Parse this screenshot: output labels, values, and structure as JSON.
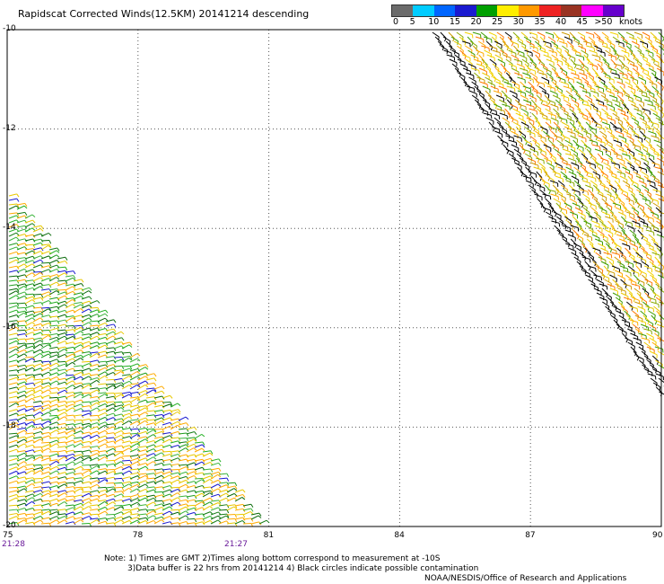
{
  "title": "Rapidscat Corrected Winds(12.5KM) 20141214 descending",
  "color_scale": {
    "unit_label": "knots",
    "labels": [
      "0",
      "5",
      "10",
      "15",
      "20",
      "25",
      "30",
      "35",
      "40",
      "45",
      ">50"
    ],
    "colors": [
      "#6b6b6b",
      "#00ccff",
      "#0066ff",
      "#1a1ad0",
      "#00a000",
      "#ffee00",
      "#ff9900",
      "#ee2222",
      "#993322",
      "#ff00ff",
      "#6600cc"
    ]
  },
  "axes": {
    "lon_ticks": [
      "75",
      "78",
      "81",
      "84",
      "87",
      "90"
    ],
    "lat_ticks": [
      "-10",
      "-12",
      "-14",
      "-16",
      "-18",
      "-20"
    ]
  },
  "time_labels": {
    "left": "21:28",
    "right": "21:27"
  },
  "notes": {
    "line1": "Note: 1) Times are GMT 2)Times along bottom correspond to measurement at -10S",
    "line2": "3)Data buffer is 22 hrs from 20141214 4) Black circles indicate possible contamination",
    "line3": "NOAA/NESDIS/Office of Research and Applications"
  },
  "barb_colors": {
    "east_swath": [
      "#f2d200",
      "#ffaa00",
      "#e8c800",
      "#cc9900",
      "#3c9c00",
      "#88aa00",
      "#ff7700",
      "#000000"
    ],
    "west_swath": [
      "#1e9c1e",
      "#23b023",
      "#167d16",
      "#0a6a0a",
      "#3cb43c",
      "#e8c800",
      "#ffaa00",
      "#1a1ad0"
    ]
  }
}
